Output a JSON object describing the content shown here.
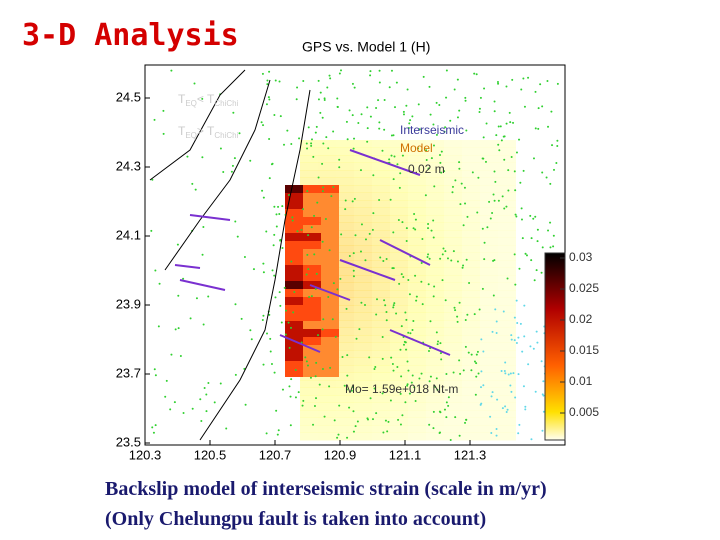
{
  "slide": {
    "title": "3-D Analysis",
    "figure": {
      "title": "GPS vs. Model 1 (H)",
      "yticks": [
        24.5,
        24.3,
        24.1,
        23.9,
        23.7,
        23.5
      ],
      "xticks": [
        120.3,
        120.5,
        120.7,
        120.9,
        121.1,
        121.3
      ],
      "legend_early": {
        "t1": "T",
        "s1": "EQ",
        "op": "< ",
        "t2": "T",
        "s2": "ChiChi"
      },
      "legend_late": {
        "t1": "T",
        "s1": "EQ",
        "op": "> ",
        "t2": "T",
        "s2": "ChiChi"
      },
      "vector_legend": [
        "Interseismic",
        "Model"
      ],
      "scale_label": "0.02 m",
      "moment": "Mo= 1.59e+018 Nt-m",
      "colorbar_ticks": [
        0.03,
        0.025,
        0.02,
        0.015,
        0.01,
        0.005
      ]
    },
    "caption": [
      "Backslip model of interseismic strain (scale in m/yr)",
      "(Only Chelungpu fault is taken into account)"
    ]
  }
}
